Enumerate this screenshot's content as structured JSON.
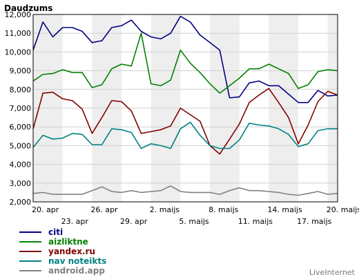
{
  "chart_data": {
    "type": "line",
    "title": "Daudzums",
    "xlabel": "",
    "ylabel": "",
    "ylim": [
      2000,
      12000
    ],
    "yticks": [
      2000,
      3000,
      4000,
      5000,
      6000,
      7000,
      8000,
      9000,
      10000,
      11000,
      12000
    ],
    "ytick_labels": [
      "2,000",
      "3,000",
      "4,000",
      "5,000",
      "6,000",
      "7,000",
      "8,000",
      "9,000",
      "10,000",
      "11,000",
      "12,000"
    ],
    "x": [
      "20. apr",
      "21. apr",
      "22. apr",
      "23. apr",
      "24. apr",
      "25. apr",
      "26. apr",
      "27. apr",
      "28. apr",
      "29. apr",
      "30. apr",
      "1. maijs",
      "2. maijs",
      "3. maijs",
      "4. maijs",
      "5. maijs",
      "6. maijs",
      "7. maijs",
      "8. maijs",
      "9. maijs",
      "10. maijs",
      "11. maijs",
      "12. maijs",
      "13. maijs",
      "14. maijs",
      "15. maijs",
      "16. maijs",
      "17. maijs",
      "18. maijs",
      "19. maijs",
      "20. maijs",
      "21. maijs"
    ],
    "xticks_top": [
      {
        "i": 0,
        "label": "20. apr"
      },
      {
        "i": 6,
        "label": "26. apr"
      },
      {
        "i": 12,
        "label": "2. maijs"
      },
      {
        "i": 18,
        "label": "8. maijs"
      },
      {
        "i": 24,
        "label": "14. maijs"
      },
      {
        "i": 30,
        "label": "20. maijs"
      }
    ],
    "xticks_bottom": [
      {
        "i": 3,
        "label": "23. apr"
      },
      {
        "i": 9,
        "label": "29. apr"
      },
      {
        "i": 15,
        "label": "5. maijs"
      },
      {
        "i": 21,
        "label": "11. maijs"
      },
      {
        "i": 27,
        "label": "17. maijs"
      }
    ],
    "grid": true,
    "weekend_shading": true,
    "series": [
      {
        "name": "citi",
        "color": "#000080",
        "values": [
          10100,
          11600,
          10800,
          11300,
          11300,
          11100,
          10500,
          10600,
          11300,
          11400,
          11700,
          11100,
          10800,
          10700,
          11000,
          11900,
          11600,
          10900,
          10500,
          10100,
          7550,
          7600,
          8350,
          8450,
          8200,
          8200,
          7750,
          7300,
          7300,
          7950,
          7650,
          7700
        ]
      },
      {
        "name": "aizliktne",
        "color": "#008000",
        "values": [
          8450,
          8800,
          8850,
          9050,
          8900,
          8900,
          8100,
          8250,
          9100,
          9350,
          9250,
          11000,
          8300,
          8200,
          8500,
          10100,
          9400,
          8900,
          8300,
          7800,
          8200,
          8600,
          9100,
          9100,
          9350,
          9100,
          8850,
          8050,
          8250,
          8950,
          9050,
          9000
        ]
      },
      {
        "name": "yandex.ru",
        "color": "#800000",
        "values": [
          5900,
          7800,
          7850,
          7500,
          7400,
          6950,
          5650,
          6500,
          7400,
          7350,
          6850,
          5650,
          5750,
          5850,
          6050,
          7000,
          6650,
          6300,
          5000,
          4550,
          5350,
          6150,
          7300,
          7700,
          8050,
          7300,
          6500,
          5100,
          6100,
          7350,
          7900,
          7700
        ]
      },
      {
        "name": "nav noteikts",
        "color": "#008080",
        "values": [
          4900,
          5550,
          5350,
          5400,
          5650,
          5600,
          5050,
          5050,
          5900,
          5850,
          5700,
          4850,
          5100,
          5000,
          4850,
          5900,
          6250,
          5550,
          5000,
          4850,
          4850,
          5300,
          6200,
          6100,
          6050,
          5900,
          5600,
          4950,
          5100,
          5800,
          5900,
          5900
        ]
      },
      {
        "name": "android.app",
        "color": "#808080",
        "values": [
          2450,
          2500,
          2400,
          2400,
          2400,
          2400,
          2600,
          2800,
          2550,
          2500,
          2600,
          2500,
          2550,
          2600,
          2850,
          2550,
          2500,
          2500,
          2500,
          2400,
          2600,
          2750,
          2600,
          2600,
          2550,
          2500,
          2400,
          2350,
          2450,
          2550,
          2400,
          2450
        ]
      }
    ]
  },
  "credit": "LiveInternet"
}
